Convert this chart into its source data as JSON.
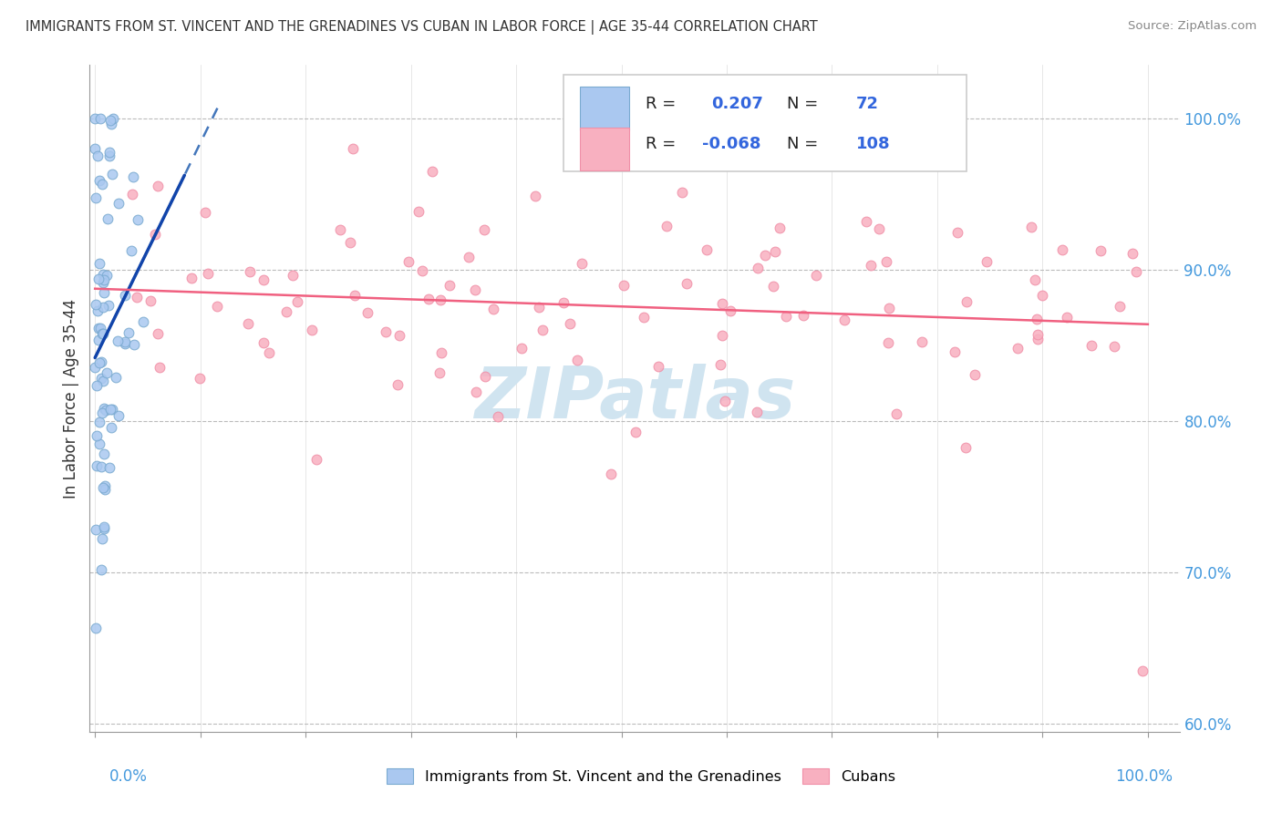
{
  "title": "IMMIGRANTS FROM ST. VINCENT AND THE GRENADINES VS CUBAN IN LABOR FORCE | AGE 35-44 CORRELATION CHART",
  "source": "Source: ZipAtlas.com",
  "ylabel": "In Labor Force | Age 35-44",
  "r_vincent": 0.207,
  "n_vincent": 72,
  "r_cuban": -0.068,
  "n_cuban": 108,
  "legend_label_vincent": "Immigrants from St. Vincent and the Grenadines",
  "legend_label_cuban": "Cubans",
  "color_vincent_fill": "#aac8f0",
  "color_vincent_edge": "#7aaad0",
  "color_cuban_fill": "#f8b0c0",
  "color_cuban_edge": "#f090a8",
  "color_vincent_line": "#4477bb",
  "color_cuban_line": "#f06080",
  "color_grid": "#bbbbbb",
  "watermark_color": "#d0e4f0",
  "ylim_min": 0.595,
  "ylim_max": 1.035,
  "xlim_min": -0.005,
  "xlim_max": 1.03,
  "yticks": [
    0.6,
    0.7,
    0.8,
    0.9,
    1.0
  ],
  "ytick_labels": [
    "60.0%",
    "70.0%",
    "80.0%",
    "90.0%",
    "100.0%"
  ]
}
